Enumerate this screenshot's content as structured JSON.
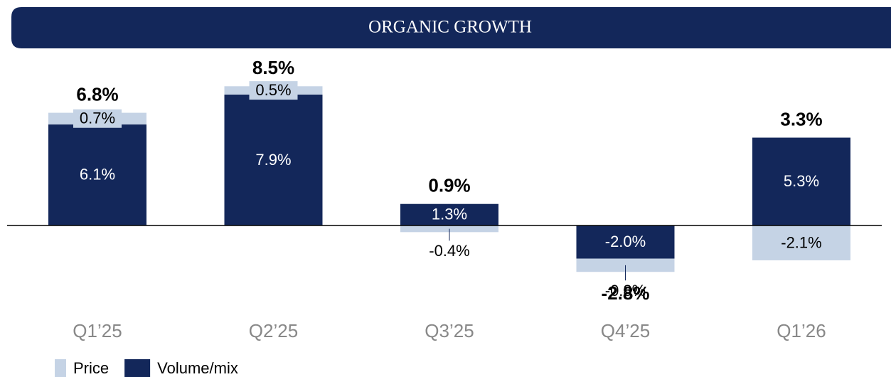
{
  "chart_data": {
    "type": "stacked_bar",
    "title": "ORGANIC GROWTH",
    "categories": [
      "Q1’25",
      "Q2’25",
      "Q3’25",
      "Q4’25",
      "Q1’26"
    ],
    "series": [
      {
        "name": "Volume/mix",
        "color": "#13275a",
        "values": [
          6.1,
          7.9,
          1.3,
          -2.0,
          5.3
        ],
        "value_labels": [
          "6.1%",
          "7.9%",
          "1.3%",
          "-2.0%",
          "5.3%"
        ]
      },
      {
        "name": "Price",
        "color": "#c5d3e5",
        "values": [
          0.7,
          0.5,
          -0.4,
          -0.8,
          -2.1
        ],
        "value_labels": [
          "0.7%",
          "0.5%",
          "-0.4%",
          "-0.8%",
          "-2.1%"
        ]
      }
    ],
    "totals": {
      "values": [
        6.8,
        8.5,
        0.9,
        -2.8,
        3.3
      ],
      "value_labels": [
        "6.8%",
        "8.5%",
        "0.9%",
        "-2.8%",
        "3.3%"
      ]
    }
  }
}
